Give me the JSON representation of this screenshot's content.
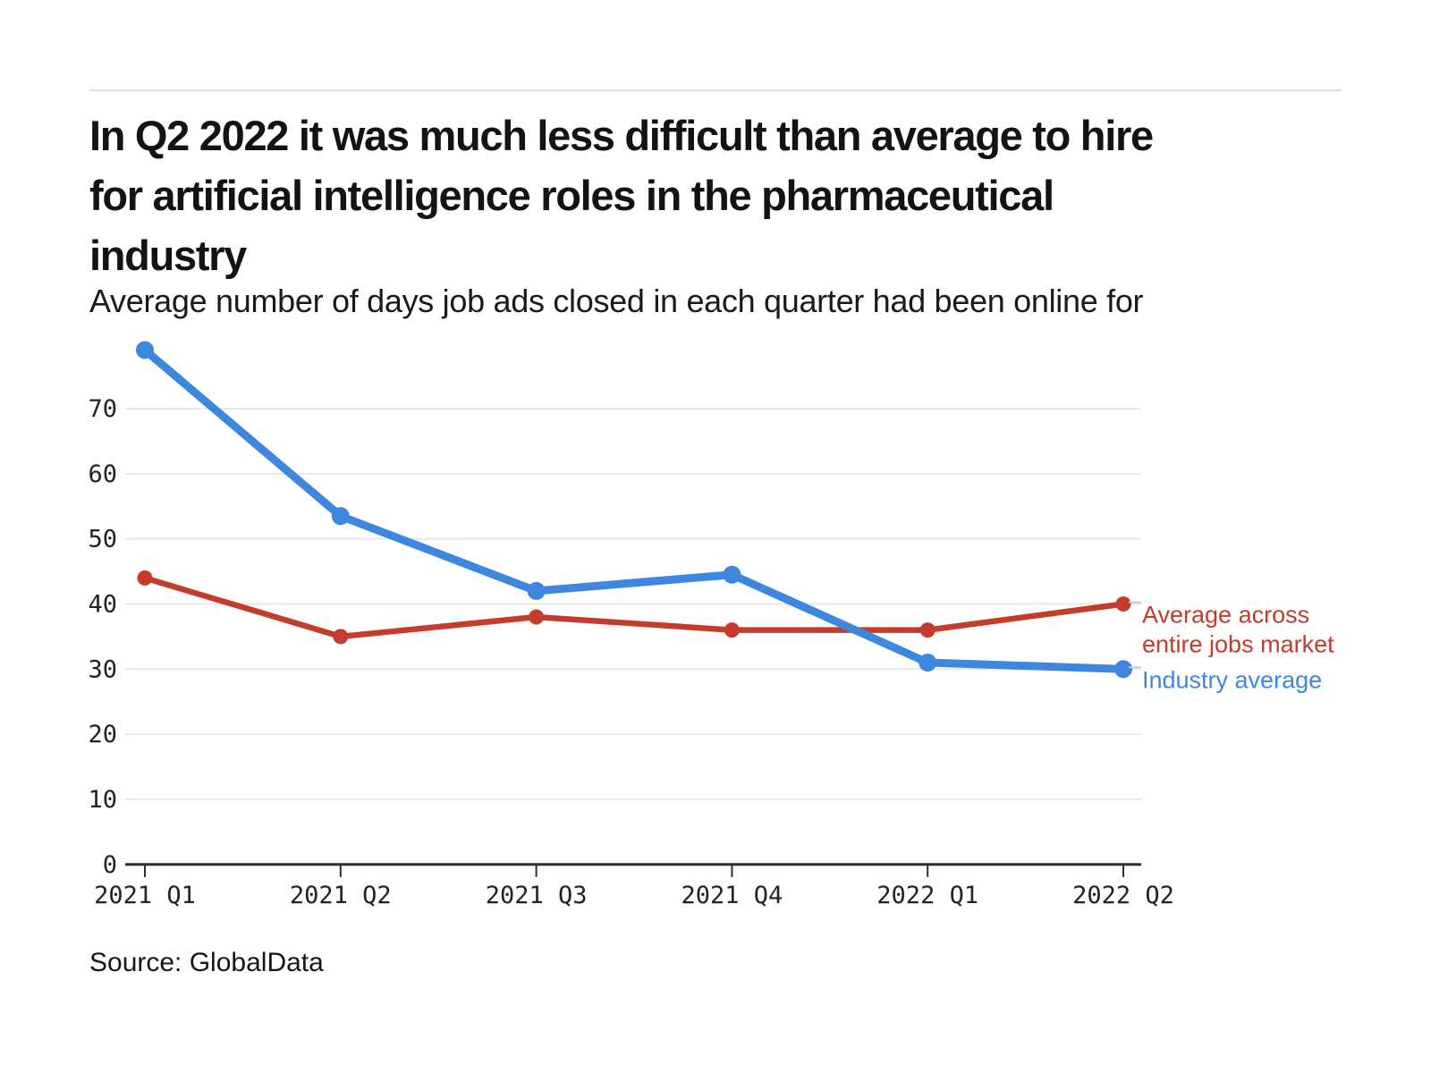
{
  "page": {
    "background": "#ffffff"
  },
  "header": {
    "title_lines": [
      "In Q2 2022 it was much less difficult than average to hire",
      "for artificial intelligence roles in the pharmaceutical",
      "industry"
    ],
    "subtitle": "Average number of days job ads closed in each quarter had been online for"
  },
  "source": {
    "text": "Source: GlobalData"
  },
  "chart_data": {
    "type": "line",
    "title": "In Q2 2022 it was much less difficult than average to hire for artificial intelligence roles in the pharmaceutical industry",
    "subtitle": "Average number of days job ads closed in each quarter had been online for",
    "categories": [
      "2021 Q1",
      "2021 Q2",
      "2021 Q3",
      "2021 Q4",
      "2022 Q1",
      "2022 Q2"
    ],
    "series": [
      {
        "name": "Average across entire jobs market",
        "legend_lines": [
          "Average across",
          "entire jobs market"
        ],
        "color": "#c53b2c",
        "values": [
          44,
          35,
          38,
          36,
          36,
          40
        ]
      },
      {
        "name": "Industry average",
        "legend_lines": [
          "Industry average"
        ],
        "color": "#3e87de",
        "values": [
          79,
          53.5,
          42,
          44.5,
          31,
          30
        ]
      }
    ],
    "xlabel": "",
    "ylabel": "",
    "ylim": [
      0,
      80
    ],
    "yticks": [
      0,
      10,
      20,
      30,
      40,
      50,
      60,
      70
    ],
    "grid": true,
    "legend_position": "right-of-last-point",
    "colors": {
      "grid": "#e8e8e8",
      "axis": "#2d2d2f",
      "tick_text": "#232323",
      "leader": "#cccccc"
    }
  }
}
